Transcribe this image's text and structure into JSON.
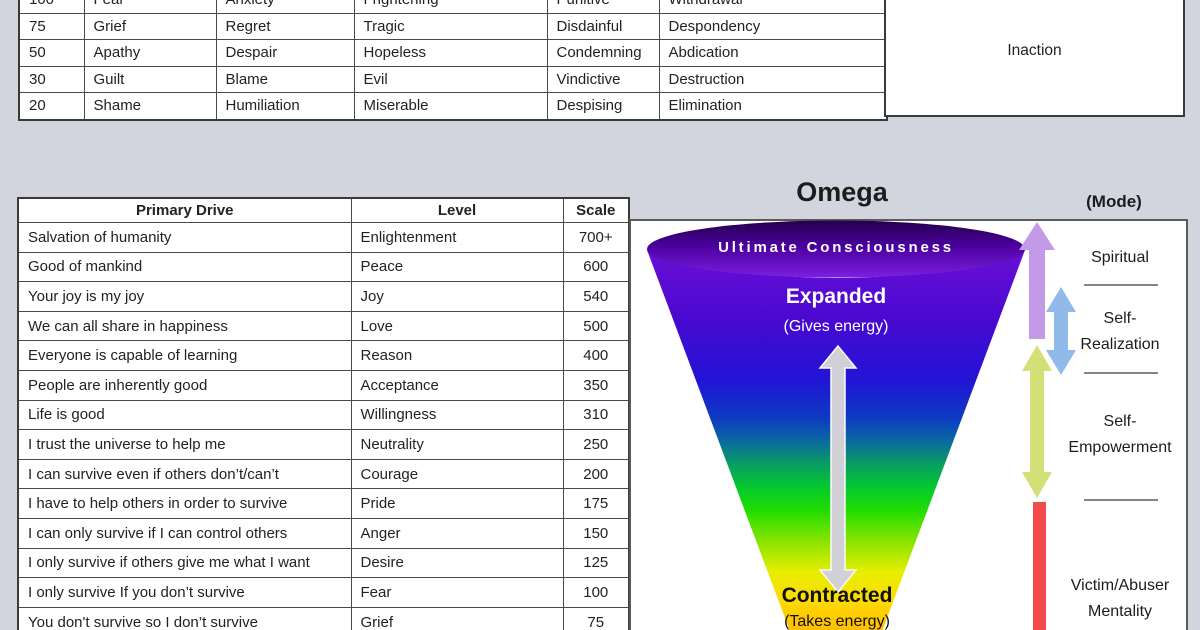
{
  "emotion_table": {
    "rows": [
      [
        "100",
        "Fear",
        "Anxiety",
        "Frightening",
        "Punitive",
        "Withdrawal"
      ],
      [
        "75",
        "Grief",
        "Regret",
        "Tragic",
        "Disdainful",
        "Despondency"
      ],
      [
        "50",
        "Apathy",
        "Despair",
        "Hopeless",
        "Condemning",
        "Abdication"
      ],
      [
        "30",
        "Guilt",
        "Blame",
        "Evil",
        "Vindictive",
        "Destruction"
      ],
      [
        "20",
        "Shame",
        "Humiliation",
        "Miserable",
        "Despising",
        "Elimination"
      ]
    ],
    "side_label": "Inaction"
  },
  "drive_table": {
    "headers": [
      "Primary Drive",
      "Level",
      "Scale"
    ],
    "rows": [
      [
        "Salvation of humanity",
        "Enlightenment",
        "700+"
      ],
      [
        "Good of mankind",
        "Peace",
        "600"
      ],
      [
        "Your joy is my joy",
        "Joy",
        "540"
      ],
      [
        "We can all share in happiness",
        "Love",
        "500"
      ],
      [
        "Everyone is capable of learning",
        "Reason",
        "400"
      ],
      [
        "People are inherently good",
        "Acceptance",
        "350"
      ],
      [
        "Life is good",
        "Willingness",
        "310"
      ],
      [
        "I trust the universe to help me",
        "Neutrality",
        "250"
      ],
      [
        "I can survive even if others don’t/can’t",
        "Courage",
        "200"
      ],
      [
        "I have to help others in order to survive",
        "Pride",
        "175"
      ],
      [
        "I can only survive if I can control others",
        "Anger",
        "150"
      ],
      [
        "I only survive if others give me what I want",
        "Desire",
        "125"
      ],
      [
        "I only survive If you don’t survive",
        "Fear",
        "100"
      ],
      [
        "You don't survive so I don’t survive",
        "Grief",
        "75"
      ]
    ]
  },
  "funnel": {
    "title": "Omega",
    "mode_label": "(Mode)",
    "top_label": "Ultimate Consciousness",
    "expanded_label": "Expanded",
    "expanded_sub": "(Gives energy)",
    "contracted_label": "Contracted",
    "contracted_sub": "(Takes energy)",
    "modes": [
      {
        "label": "Spiritual"
      },
      {
        "label": "Self-\nRealization"
      },
      {
        "label": "Self-\nEmpowerment"
      },
      {
        "label": "Victim/Abuser\nMentality"
      }
    ]
  },
  "colors": {
    "background": "#d2d5de",
    "panel_border": "#5a5a5a",
    "spiritual_arrow": "#c39ae7",
    "realization_arrow": "#8fbae9",
    "empowerment_arrow": "#d3e077",
    "victim_bar": "#f34b4b",
    "center_arrow": "#d0d0d6",
    "funnel_top": "#6a0fd6",
    "funnel_bottom": "#ffb900"
  }
}
